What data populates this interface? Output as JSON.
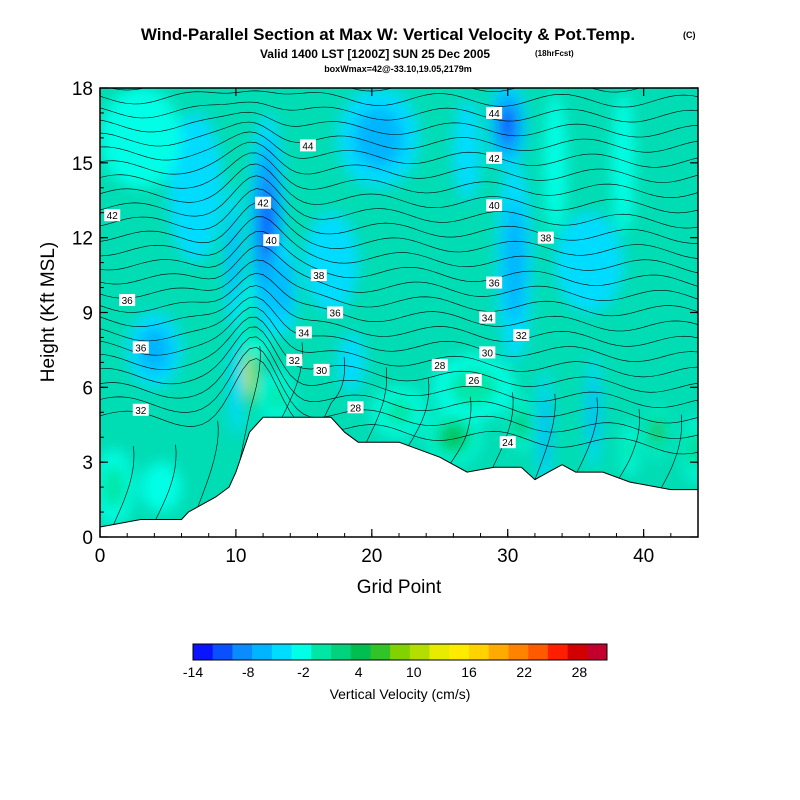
{
  "chart_data": {
    "type": "heatmap",
    "title": "Wind-Parallel Section at Max W: Vertical Velocity & Pot.Temp.",
    "title_mark": "(C)",
    "subtitle": "Valid 1400 LST [1200Z] SUN 25 Dec 2005",
    "subtitle_note": "(18hrFcst)",
    "subtitle2": "boxWmax=42@-33.10,19.05,2179m",
    "xlabel": "Grid Point",
    "ylabel": "Height (Kft MSL)",
    "xlim": [
      0,
      44
    ],
    "ylim": [
      0,
      18
    ],
    "xticks": [
      "0",
      "10",
      "20",
      "30",
      "40"
    ],
    "yticks": [
      "0",
      "3",
      "6",
      "9",
      "12",
      "15",
      "18"
    ],
    "colorbar": {
      "label": "Vertical Velocity (cm/s)",
      "min": -14,
      "max": 31,
      "step": 3,
      "tick_labels": [
        "-14",
        "-8",
        "-2",
        "4",
        "10",
        "16",
        "22",
        "28"
      ],
      "colors": [
        "#0a14ff",
        "#0a50ff",
        "#0a8cff",
        "#00b4ff",
        "#00dcff",
        "#00ffe6",
        "#00e6a5",
        "#00d27d",
        "#00be50",
        "#32c328",
        "#82d200",
        "#b4de00",
        "#e6eb00",
        "#ffeb00",
        "#ffd200",
        "#ffaa00",
        "#ff8200",
        "#ff5a00",
        "#ff1e00",
        "#d20000",
        "#c3002d"
      ]
    },
    "terrain": [
      [
        0,
        0.4
      ],
      [
        3,
        0.7
      ],
      [
        6,
        0.7
      ],
      [
        6.5,
        1.0
      ],
      [
        7.5,
        1.3
      ],
      [
        8.5,
        1.6
      ],
      [
        9.5,
        2.0
      ],
      [
        10,
        2.6
      ],
      [
        11,
        4.2
      ],
      [
        12,
        4.8
      ],
      [
        17,
        4.8
      ],
      [
        18,
        4.2
      ],
      [
        19,
        3.8
      ],
      [
        22,
        3.8
      ],
      [
        25,
        3.2
      ],
      [
        27,
        2.6
      ],
      [
        29,
        2.8
      ],
      [
        31,
        2.8
      ],
      [
        32,
        2.3
      ],
      [
        33,
        2.6
      ],
      [
        34,
        2.9
      ],
      [
        35,
        2.6
      ],
      [
        37,
        2.6
      ],
      [
        39,
        2.2
      ],
      [
        42,
        1.9
      ],
      [
        44,
        1.9
      ]
    ],
    "w_cells": [
      {
        "x": 11,
        "y": 6.5,
        "w": 29,
        "sx": 0.5,
        "sy": 2.0
      },
      {
        "x": 11.6,
        "y": 8.8,
        "w": 8,
        "sx": 1.3,
        "sy": 1.6
      },
      {
        "x": 12.3,
        "y": 12.5,
        "w": -11,
        "sx": 1.3,
        "sy": 4.5
      },
      {
        "x": 9.8,
        "y": 11.2,
        "w": -4,
        "sx": 0.6,
        "sy": 3.0
      },
      {
        "x": 13.5,
        "y": 10.0,
        "w": -5,
        "sx": 1.0,
        "sy": 2.0
      },
      {
        "x": 10.0,
        "y": 6.0,
        "w": -3,
        "sx": 0.5,
        "sy": 2.0
      },
      {
        "x": 13.0,
        "y": 5.6,
        "w": 4,
        "sx": 1.2,
        "sy": 1.0
      },
      {
        "x": 20.5,
        "y": 16.0,
        "w": -4,
        "sx": 3.0,
        "sy": 2.0
      },
      {
        "x": 17.0,
        "y": 11.0,
        "w": -3,
        "sx": 2.0,
        "sy": 2.0
      },
      {
        "x": 30.0,
        "y": 16.5,
        "w": -11,
        "sx": 1.4,
        "sy": 1.8
      },
      {
        "x": 30.5,
        "y": 11.0,
        "w": -5,
        "sx": 1.3,
        "sy": 4.0
      },
      {
        "x": 27.0,
        "y": 15.5,
        "w": -2,
        "sx": 1.0,
        "sy": 2.0
      },
      {
        "x": 33.5,
        "y": 15.0,
        "w": 3,
        "sx": 0.8,
        "sy": 2.8
      },
      {
        "x": 38.5,
        "y": 15.0,
        "w": 2,
        "sx": 0.8,
        "sy": 2.8
      },
      {
        "x": 36.0,
        "y": 11.0,
        "w": -2,
        "sx": 2.5,
        "sy": 2.0
      },
      {
        "x": 26.0,
        "y": 4.0,
        "w": 12,
        "sx": 2.0,
        "sy": 1.1
      },
      {
        "x": 27.5,
        "y": 6.0,
        "w": 4,
        "sx": 3.0,
        "sy": 1.3
      },
      {
        "x": 31.0,
        "y": 4.5,
        "w": 11,
        "sx": 0.9,
        "sy": 1.0
      },
      {
        "x": 32.7,
        "y": 4.2,
        "w": -5,
        "sx": 0.5,
        "sy": 2.5
      },
      {
        "x": 36.3,
        "y": 5.0,
        "w": -4,
        "sx": 0.5,
        "sy": 2.3
      },
      {
        "x": 41.0,
        "y": 4.2,
        "w": 13,
        "sx": 0.9,
        "sy": 1.0
      },
      {
        "x": 39.0,
        "y": 3.5,
        "w": 5,
        "sx": 0.7,
        "sy": 1.0
      },
      {
        "x": 43.8,
        "y": 3.5,
        "w": 8,
        "sx": 0.9,
        "sy": 1.3
      },
      {
        "x": 1.0,
        "y": 2.0,
        "w": 6,
        "sx": 1.5,
        "sy": 1.5
      },
      {
        "x": 4.5,
        "y": 2.0,
        "w": 2,
        "sx": 1.5,
        "sy": 1.0
      },
      {
        "x": 22.0,
        "y": 5.0,
        "w": 4,
        "sx": 2.0,
        "sy": 1.0
      },
      {
        "x": 18.5,
        "y": 7.0,
        "w": -2,
        "sx": 1.0,
        "sy": 1.2
      },
      {
        "x": 4.0,
        "y": 7.5,
        "w": -4,
        "sx": 2.0,
        "sy": 1.5
      },
      {
        "x": 7.0,
        "y": 14.0,
        "w": -2,
        "sx": 2.0,
        "sy": 3.0
      },
      {
        "x": 3.0,
        "y": 16.0,
        "w": 2,
        "sx": 3.0,
        "sy": 2.0
      }
    ],
    "contour_labels": [
      {
        "text": "44",
        "x": 29.0,
        "y": 17.0
      },
      {
        "text": "44",
        "x": 15.3,
        "y": 15.7
      },
      {
        "text": "42",
        "x": 29.0,
        "y": 15.2
      },
      {
        "text": "42",
        "x": 0.9,
        "y": 12.9
      },
      {
        "text": "42",
        "x": 12.0,
        "y": 13.4
      },
      {
        "text": "40",
        "x": 12.6,
        "y": 11.9
      },
      {
        "text": "40",
        "x": 29.0,
        "y": 13.3
      },
      {
        "text": "38",
        "x": 32.8,
        "y": 12.0
      },
      {
        "text": "38",
        "x": 16.1,
        "y": 10.5
      },
      {
        "text": "36",
        "x": 2.0,
        "y": 9.5
      },
      {
        "text": "36",
        "x": 17.3,
        "y": 9.0
      },
      {
        "text": "36",
        "x": 29.0,
        "y": 10.2
      },
      {
        "text": "34",
        "x": 15.0,
        "y": 8.2
      },
      {
        "text": "34",
        "x": 28.5,
        "y": 8.8
      },
      {
        "text": "32",
        "x": 31.0,
        "y": 8.1
      },
      {
        "text": "36",
        "x": 3.0,
        "y": 7.6
      },
      {
        "text": "32",
        "x": 14.3,
        "y": 7.1
      },
      {
        "text": "30",
        "x": 16.3,
        "y": 6.7
      },
      {
        "text": "30",
        "x": 28.5,
        "y": 7.4
      },
      {
        "text": "28",
        "x": 25.0,
        "y": 6.9
      },
      {
        "text": "26",
        "x": 27.5,
        "y": 6.3
      },
      {
        "text": "32",
        "x": 3.0,
        "y": 5.1
      },
      {
        "text": "28",
        "x": 18.8,
        "y": 5.2
      },
      {
        "text": "24",
        "x": 30.0,
        "y": 3.8
      }
    ]
  }
}
